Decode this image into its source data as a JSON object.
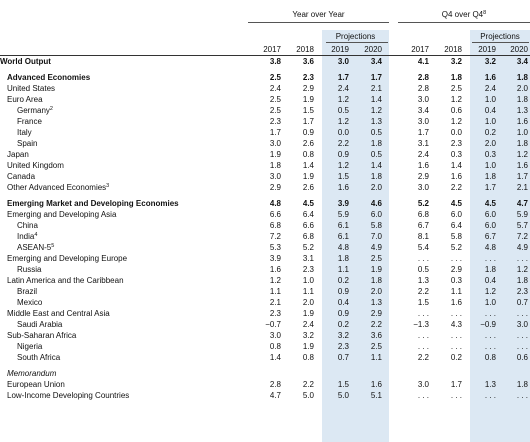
{
  "header": {
    "group_yoy": "Year over Year",
    "group_q4": "Q4 over Q4",
    "group_q4_note": "8",
    "projections": "Projections",
    "years": [
      "2017",
      "2018",
      "2019",
      "2020"
    ]
  },
  "rows": [
    {
      "label": "World Output",
      "note": "",
      "level": 0,
      "bold": true,
      "values": [
        "3.8",
        "3.6",
        "3.0",
        "3.4",
        "4.1",
        "3.2",
        "3.2",
        "3.4"
      ]
    },
    {
      "spacer": true
    },
    {
      "label": "Advanced Economies",
      "note": "",
      "level": 1,
      "bold": true,
      "values": [
        "2.5",
        "2.3",
        "1.7",
        "1.7",
        "2.8",
        "1.8",
        "1.6",
        "1.8"
      ]
    },
    {
      "label": "United States",
      "note": "",
      "level": 1,
      "values": [
        "2.4",
        "2.9",
        "2.4",
        "2.1",
        "2.8",
        "2.5",
        "2.4",
        "2.0"
      ]
    },
    {
      "label": "Euro Area",
      "note": "",
      "level": 1,
      "values": [
        "2.5",
        "1.9",
        "1.2",
        "1.4",
        "3.0",
        "1.2",
        "1.0",
        "1.8"
      ]
    },
    {
      "label": "Germany",
      "note": "2",
      "level": 2,
      "values": [
        "2.5",
        "1.5",
        "0.5",
        "1.2",
        "3.4",
        "0.6",
        "0.4",
        "1.3"
      ]
    },
    {
      "label": "France",
      "note": "",
      "level": 2,
      "values": [
        "2.3",
        "1.7",
        "1.2",
        "1.3",
        "3.0",
        "1.2",
        "1.0",
        "1.6"
      ]
    },
    {
      "label": "Italy",
      "note": "",
      "level": 2,
      "values": [
        "1.7",
        "0.9",
        "0.0",
        "0.5",
        "1.7",
        "0.0",
        "0.2",
        "1.0"
      ]
    },
    {
      "label": "Spain",
      "note": "",
      "level": 2,
      "values": [
        "3.0",
        "2.6",
        "2.2",
        "1.8",
        "3.1",
        "2.3",
        "2.0",
        "1.8"
      ]
    },
    {
      "label": "Japan",
      "note": "",
      "level": 1,
      "values": [
        "1.9",
        "0.8",
        "0.9",
        "0.5",
        "2.4",
        "0.3",
        "0.3",
        "1.2"
      ]
    },
    {
      "label": "United Kingdom",
      "note": "",
      "level": 1,
      "values": [
        "1.8",
        "1.4",
        "1.2",
        "1.4",
        "1.6",
        "1.4",
        "1.0",
        "1.6"
      ]
    },
    {
      "label": "Canada",
      "note": "",
      "level": 1,
      "values": [
        "3.0",
        "1.9",
        "1.5",
        "1.8",
        "2.9",
        "1.6",
        "1.8",
        "1.7"
      ]
    },
    {
      "label": "Other Advanced Economies",
      "note": "3",
      "level": 1,
      "values": [
        "2.9",
        "2.6",
        "1.6",
        "2.0",
        "3.0",
        "2.2",
        "1.7",
        "2.1"
      ]
    },
    {
      "spacer": true
    },
    {
      "label": "Emerging Market and Developing Economies",
      "note": "",
      "level": 1,
      "bold": true,
      "values": [
        "4.8",
        "4.5",
        "3.9",
        "4.6",
        "5.2",
        "4.5",
        "4.5",
        "4.7"
      ]
    },
    {
      "label": "Emerging and Developing Asia",
      "note": "",
      "level": 1,
      "values": [
        "6.6",
        "6.4",
        "5.9",
        "6.0",
        "6.8",
        "6.0",
        "6.0",
        "5.9"
      ]
    },
    {
      "label": "China",
      "note": "",
      "level": 3,
      "values": [
        "6.8",
        "6.6",
        "6.1",
        "5.8",
        "6.7",
        "6.4",
        "6.0",
        "5.7"
      ]
    },
    {
      "label": "India",
      "note": "4",
      "level": 3,
      "values": [
        "7.2",
        "6.8",
        "6.1",
        "7.0",
        "8.1",
        "5.8",
        "6.7",
        "7.2"
      ]
    },
    {
      "label": "ASEAN-5",
      "note": "5",
      "level": 3,
      "values": [
        "5.3",
        "5.2",
        "4.8",
        "4.9",
        "5.4",
        "5.2",
        "4.8",
        "4.9"
      ]
    },
    {
      "label": "Emerging and Developing Europe",
      "note": "",
      "level": 1,
      "values": [
        "3.9",
        "3.1",
        "1.8",
        "2.5",
        ". . .",
        ". . .",
        ". . .",
        ". . ."
      ]
    },
    {
      "label": "Russia",
      "note": "",
      "level": 3,
      "values": [
        "1.6",
        "2.3",
        "1.1",
        "1.9",
        "0.5",
        "2.9",
        "1.8",
        "1.2"
      ]
    },
    {
      "label": "Latin America and the Caribbean",
      "note": "",
      "level": 1,
      "values": [
        "1.2",
        "1.0",
        "0.2",
        "1.8",
        "1.3",
        "0.3",
        "0.4",
        "1.8"
      ]
    },
    {
      "label": "Brazil",
      "note": "",
      "level": 3,
      "values": [
        "1.1",
        "1.1",
        "0.9",
        "2.0",
        "2.2",
        "1.1",
        "1.2",
        "2.3"
      ]
    },
    {
      "label": "Mexico",
      "note": "",
      "level": 3,
      "values": [
        "2.1",
        "2.0",
        "0.4",
        "1.3",
        "1.5",
        "1.6",
        "1.0",
        "0.7"
      ]
    },
    {
      "label": "Middle East and Central Asia",
      "note": "",
      "level": 1,
      "values": [
        "2.3",
        "1.9",
        "0.9",
        "2.9",
        ". . .",
        ". . .",
        ". . .",
        ". . ."
      ]
    },
    {
      "label": "Saudi Arabia",
      "note": "",
      "level": 3,
      "values": [
        "−0.7",
        "2.4",
        "0.2",
        "2.2",
        "−1.3",
        "4.3",
        "−0.9",
        "3.0"
      ]
    },
    {
      "label": "Sub-Saharan Africa",
      "note": "",
      "level": 1,
      "values": [
        "3.0",
        "3.2",
        "3.2",
        "3.6",
        ". . .",
        ". . .",
        ". . .",
        ". . ."
      ]
    },
    {
      "label": "Nigeria",
      "note": "",
      "level": 3,
      "values": [
        "0.8",
        "1.9",
        "2.3",
        "2.5",
        ". . .",
        ". . .",
        ". . .",
        ". . ."
      ]
    },
    {
      "label": "South Africa",
      "note": "",
      "level": 3,
      "values": [
        "1.4",
        "0.8",
        "0.7",
        "1.1",
        "2.2",
        "0.2",
        "0.8",
        "0.6"
      ]
    },
    {
      "spacer": true
    },
    {
      "label": "Memorandum",
      "note": "",
      "level": 1,
      "italic": true,
      "values": [
        "",
        "",
        "",
        "",
        "",
        "",
        "",
        ""
      ]
    },
    {
      "label": "European Union",
      "note": "",
      "level": 1,
      "values": [
        "2.8",
        "2.2",
        "1.5",
        "1.6",
        "3.0",
        "1.7",
        "1.3",
        "1.8"
      ]
    },
    {
      "label": "Low-Income Developing Countries",
      "note": "",
      "level": 1,
      "values": [
        "4.7",
        "5.0",
        "5.0",
        "5.1",
        ". . .",
        ". . .",
        ". . .",
        ". . ."
      ]
    }
  ]
}
